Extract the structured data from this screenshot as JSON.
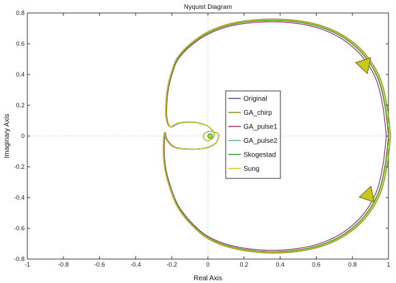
{
  "chart_data": {
    "type": "line",
    "title": "Nyquist Diagram",
    "xlabel": "Real Axis",
    "ylabel": "Imaginary Axis",
    "xlim": [
      -1,
      1
    ],
    "ylim": [
      -0.8,
      0.8
    ],
    "xticks": [
      "-1",
      "-0.8",
      "-0.6",
      "-0.4",
      "-0.2",
      "0",
      "0.2",
      "0.4",
      "0.6",
      "0.8",
      "1"
    ],
    "yticks": [
      "0.8",
      "0.6",
      "0.4",
      "0.2",
      "0",
      "-0.2",
      "-0.4",
      "-0.6",
      "-0.8"
    ],
    "grid": true,
    "legend_position": "center",
    "series": [
      {
        "name": "Original",
        "color": "#4a4a8c"
      },
      {
        "name": "GA_chirp",
        "color": "#8c8c1e"
      },
      {
        "name": "GA_pulse1",
        "color": "#a0306a"
      },
      {
        "name": "GA_pulse2",
        "color": "#5aaa9a"
      },
      {
        "name": "Skogestad",
        "color": "#2e9a2e"
      },
      {
        "name": "Sung",
        "color": "#c8c81e"
      }
    ],
    "curve_points": [
      [
        1.0,
        0.0
      ],
      [
        0.98,
        0.2
      ],
      [
        0.94,
        0.38
      ],
      [
        0.86,
        0.53
      ],
      [
        0.75,
        0.64
      ],
      [
        0.62,
        0.71
      ],
      [
        0.47,
        0.745
      ],
      [
        0.3,
        0.75
      ],
      [
        0.13,
        0.725
      ],
      [
        0.0,
        0.67
      ],
      [
        -0.1,
        0.59
      ],
      [
        -0.17,
        0.5
      ],
      [
        -0.2,
        0.41
      ],
      [
        -0.22,
        0.32
      ],
      [
        -0.23,
        0.22
      ],
      [
        -0.23,
        0.12
      ],
      [
        -0.21,
        0.06
      ],
      [
        -0.16,
        0.085
      ],
      [
        -0.08,
        0.09
      ],
      [
        -0.01,
        0.07
      ],
      [
        0.03,
        0.03
      ],
      [
        0.035,
        0.0
      ],
      [
        0.02,
        -0.02
      ],
      [
        0.0,
        -0.03
      ],
      [
        -0.02,
        -0.02
      ],
      [
        -0.025,
        0.0
      ],
      [
        -0.015,
        0.02
      ],
      [
        0.01,
        0.03
      ],
      [
        0.05,
        0.02
      ],
      [
        0.06,
        0.0
      ],
      [
        0.04,
        -0.05
      ],
      [
        -0.02,
        -0.08
      ],
      [
        -0.12,
        -0.085
      ],
      [
        -0.19,
        -0.07
      ],
      [
        -0.23,
        -0.02
      ],
      [
        -0.24,
        0.02
      ],
      [
        -0.245,
        -0.1
      ],
      [
        -0.235,
        -0.22
      ],
      [
        -0.21,
        -0.33
      ],
      [
        -0.17,
        -0.45
      ],
      [
        -0.1,
        -0.56
      ],
      [
        0.0,
        -0.66
      ],
      [
        0.13,
        -0.72
      ],
      [
        0.3,
        -0.75
      ],
      [
        0.47,
        -0.745
      ],
      [
        0.62,
        -0.71
      ],
      [
        0.75,
        -0.64
      ],
      [
        0.86,
        -0.53
      ],
      [
        0.94,
        -0.38
      ],
      [
        0.98,
        -0.2
      ],
      [
        1.0,
        0.0
      ]
    ],
    "curve_offsets": [
      [
        0.0,
        0.0
      ],
      [
        0.012,
        0.0
      ],
      [
        -0.012,
        0.0
      ],
      [
        0.0,
        0.012
      ],
      [
        0.0,
        -0.012
      ],
      [
        0.006,
        0.006
      ]
    ],
    "arrows": [
      {
        "x": 0.86,
        "y": 0.46,
        "direction": "up"
      },
      {
        "x": 0.88,
        "y": -0.38,
        "direction": "down"
      }
    ]
  }
}
